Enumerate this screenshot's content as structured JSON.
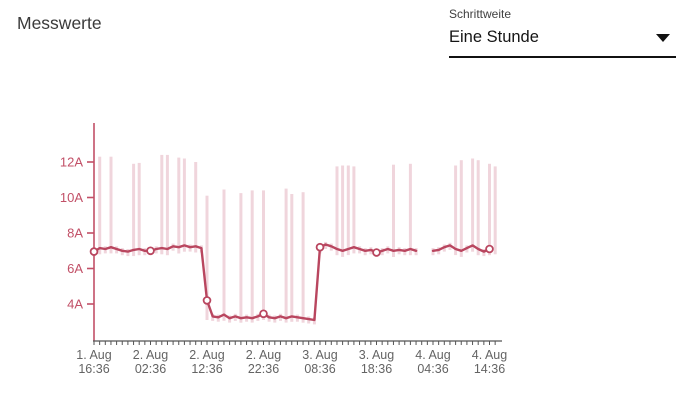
{
  "header": {
    "title": "Messwerte"
  },
  "controls": {
    "step_size": {
      "label": "Schrittweite",
      "value": "Eine Stunde"
    }
  },
  "chart_data": {
    "type": "line",
    "title": "Messwerte",
    "unit": "A",
    "xlabel": "",
    "ylabel": "",
    "grid": false,
    "legend": "none",
    "step_hours": 1,
    "x_range_hours": [
      0,
      71
    ],
    "ylim": [
      1.9,
      14.2
    ],
    "yticks": [
      {
        "value": 4,
        "label": "4A"
      },
      {
        "value": 6,
        "label": "6A"
      },
      {
        "value": 8,
        "label": "8A"
      },
      {
        "value": 10,
        "label": "10A"
      },
      {
        "value": 12,
        "label": "12A"
      }
    ],
    "xticks": [
      {
        "hour": 0,
        "date": "1. Aug",
        "time": "16:36"
      },
      {
        "hour": 10,
        "date": "2. Aug",
        "time": "02:36"
      },
      {
        "hour": 20,
        "date": "2. Aug",
        "time": "12:36"
      },
      {
        "hour": 30,
        "date": "2. Aug",
        "time": "22:36"
      },
      {
        "hour": 40,
        "date": "3. Aug",
        "time": "08:36"
      },
      {
        "hour": 50,
        "date": "3. Aug",
        "time": "18:36"
      },
      {
        "hour": 60,
        "date": "4. Aug",
        "time": "04:36"
      },
      {
        "hour": 70,
        "date": "4. Aug",
        "time": "14:36"
      }
    ],
    "marker_hours": [
      0,
      10,
      20,
      30,
      40,
      50,
      70
    ],
    "series": [
      {
        "role": "mean",
        "values": [
          6.95,
          7.15,
          7.1,
          7.2,
          7.1,
          7.0,
          6.95,
          7.05,
          7.1,
          7.0,
          7.0,
          7.1,
          7.15,
          7.1,
          7.25,
          7.2,
          7.3,
          7.2,
          7.25,
          7.15,
          4.2,
          3.3,
          3.25,
          3.4,
          3.2,
          3.3,
          3.2,
          3.25,
          3.2,
          3.3,
          3.45,
          3.25,
          3.2,
          3.3,
          3.2,
          3.3,
          3.25,
          3.2,
          3.15,
          3.1,
          7.2,
          7.35,
          7.25,
          7.1,
          7.0,
          7.1,
          7.2,
          7.1,
          7.0,
          7.05,
          6.9,
          7.0,
          7.1,
          7.0,
          7.05,
          7.0,
          7.1,
          7.0,
          null,
          null,
          7.0,
          7.05,
          7.2,
          7.3,
          7.1,
          7.0,
          7.15,
          7.3,
          7.1,
          6.95,
          7.1,
          null
        ]
      },
      {
        "role": "max",
        "values": [
          7.1,
          12.3,
          7.25,
          12.3,
          7.25,
          7.15,
          7.1,
          11.9,
          11.95,
          7.15,
          7.15,
          7.25,
          12.4,
          12.4,
          7.4,
          12.25,
          12.2,
          7.35,
          12.0,
          7.3,
          10.1,
          3.45,
          3.4,
          10.45,
          3.35,
          3.45,
          10.25,
          3.4,
          10.4,
          3.45,
          10.4,
          3.4,
          3.35,
          3.45,
          10.5,
          10.2,
          3.4,
          10.3,
          3.3,
          3.25,
          7.35,
          7.5,
          7.4,
          11.75,
          11.8,
          11.8,
          11.75,
          7.25,
          7.15,
          7.2,
          7.05,
          7.15,
          7.25,
          11.85,
          7.2,
          7.15,
          11.9,
          7.15,
          null,
          null,
          7.15,
          7.2,
          7.35,
          7.45,
          11.8,
          12.1,
          7.3,
          12.2,
          12.1,
          7.1,
          11.9,
          11.75
        ]
      },
      {
        "role": "min",
        "values": [
          6.7,
          6.8,
          6.85,
          6.85,
          6.85,
          6.75,
          6.7,
          6.7,
          6.75,
          6.75,
          6.75,
          6.85,
          6.8,
          6.75,
          7.0,
          6.85,
          6.95,
          6.95,
          6.9,
          6.9,
          3.1,
          3.05,
          3.0,
          3.05,
          2.95,
          3.05,
          2.95,
          3.0,
          2.95,
          3.05,
          3.1,
          3.0,
          2.95,
          3.05,
          2.95,
          3.0,
          3.0,
          2.95,
          2.9,
          2.85,
          6.85,
          7.1,
          7.0,
          6.75,
          6.65,
          6.75,
          6.85,
          6.85,
          6.75,
          6.8,
          6.65,
          6.75,
          6.85,
          6.65,
          6.8,
          6.75,
          6.75,
          6.75,
          null,
          null,
          6.75,
          6.8,
          6.95,
          7.05,
          6.75,
          6.65,
          6.9,
          6.95,
          6.75,
          6.7,
          6.75,
          6.8
        ]
      }
    ],
    "colors": {
      "line": "#b9465f",
      "bars": "#f0d5dc",
      "y_axis": "#c25067",
      "x_axis": "#555555",
      "x_tick_text": "#646464",
      "marker_fill": "#ffffff",
      "title_text": "#3a3a3a",
      "select_underline": "#111111"
    }
  }
}
